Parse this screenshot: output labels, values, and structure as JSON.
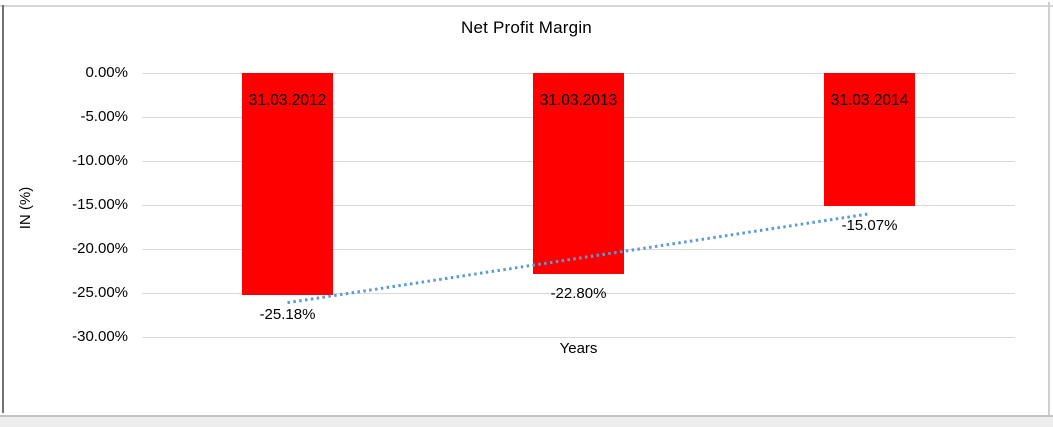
{
  "chart_data": {
    "type": "bar",
    "title": "Net Profit Margin",
    "xlabel": "Years",
    "ylabel": "IN (%)",
    "categories": [
      "31.03.2012",
      "31.03.2013",
      "31.03.2014"
    ],
    "values": [
      -25.18,
      -22.8,
      -15.07
    ],
    "data_labels": [
      "-25.18%",
      "-22.80%",
      "-15.07%"
    ],
    "yticks": [
      {
        "label": "0.00%",
        "value": 0
      },
      {
        "label": "-5.00%",
        "value": -5
      },
      {
        "label": "-10.00%",
        "value": -10
      },
      {
        "label": "-15.00%",
        "value": -15
      },
      {
        "label": "-20.00%",
        "value": -20
      },
      {
        "label": "-25.00%",
        "value": -25
      },
      {
        "label": "-30.00%",
        "value": -30
      }
    ],
    "ylim": [
      -30,
      0
    ],
    "grid": true,
    "legend": "none",
    "bar_color": "#ff0000",
    "gridline_color": "#d9d9d9",
    "text_color": "#000000",
    "trendline": {
      "type": "linear",
      "style": "dotted",
      "color": "#5b9bd5",
      "start_value_pct": -26.1,
      "end_value_pct": -16.0,
      "spans_categories": [
        "31.03.2012",
        "31.03.2014"
      ]
    }
  }
}
